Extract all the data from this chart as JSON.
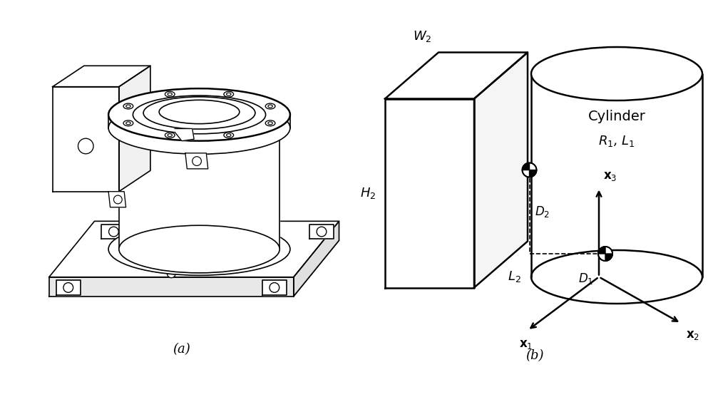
{
  "fig_width": 10.0,
  "fig_height": 5.57,
  "bg_color": "#ffffff",
  "label_a": "(a)",
  "label_b": "(b)",
  "line_color": "#000000",
  "line_width": 1.2,
  "lw_thick": 1.8
}
